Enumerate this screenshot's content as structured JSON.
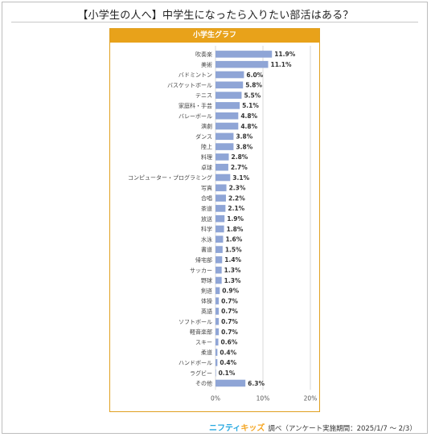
{
  "page": {
    "title": "【小学生の人へ】中学生になったら入りたい部活はある？",
    "brand_part1": "ニフティ",
    "brand_part2": "キッズ",
    "footer_note": "調べ（アンケート実施期間：2025/1/7 ～ 2/3）"
  },
  "colors": {
    "bar": "#8fa5d6",
    "header": "#e8a21a",
    "grid": "#d9d9d9"
  },
  "chart_data": {
    "type": "bar",
    "orientation": "horizontal",
    "title": "小学生グラフ",
    "categories": [
      "吹奏楽",
      "美術",
      "バドミントン",
      "バスケットボール",
      "テニス",
      "家庭科・手芸",
      "バレーボール",
      "演劇",
      "ダンス",
      "陸上",
      "料理",
      "卓球",
      "コンピューター・プログラミング",
      "写真",
      "合唱",
      "茶道",
      "放送",
      "科学",
      "水泳",
      "書道",
      "帰宅部",
      "サッカー",
      "野球",
      "剣道",
      "体操",
      "英語",
      "ソフトボール",
      "軽音楽部",
      "スキー",
      "柔道",
      "ハンドボール",
      "ラグビー",
      "その他"
    ],
    "values": [
      11.9,
      11.1,
      6.0,
      5.8,
      5.5,
      5.1,
      4.8,
      4.8,
      3.8,
      3.8,
      2.8,
      2.7,
      3.1,
      2.3,
      2.2,
      2.1,
      1.9,
      1.8,
      1.6,
      1.5,
      1.4,
      1.3,
      1.3,
      0.9,
      0.7,
      0.7,
      0.7,
      0.7,
      0.6,
      0.4,
      0.4,
      0.1,
      6.3
    ],
    "value_labels": [
      "11.9%",
      "11.1%",
      "6.0%",
      "5.8%",
      "5.5%",
      "5.1%",
      "4.8%",
      "4.8%",
      "3.8%",
      "3.8%",
      "2.8%",
      "2.7%",
      "3.1%",
      "2.3%",
      "2.2%",
      "2.1%",
      "1.9%",
      "1.8%",
      "1.6%",
      "1.5%",
      "1.4%",
      "1.3%",
      "1.3%",
      "0.9%",
      "0.7%",
      "0.7%",
      "0.7%",
      "0.7%",
      "0.6%",
      "0.4%",
      "0.4%",
      "0.1%",
      "6.3%"
    ],
    "xlim": [
      0,
      20
    ],
    "xticks": [
      "0%",
      "10%",
      "20%"
    ],
    "grid": true
  }
}
